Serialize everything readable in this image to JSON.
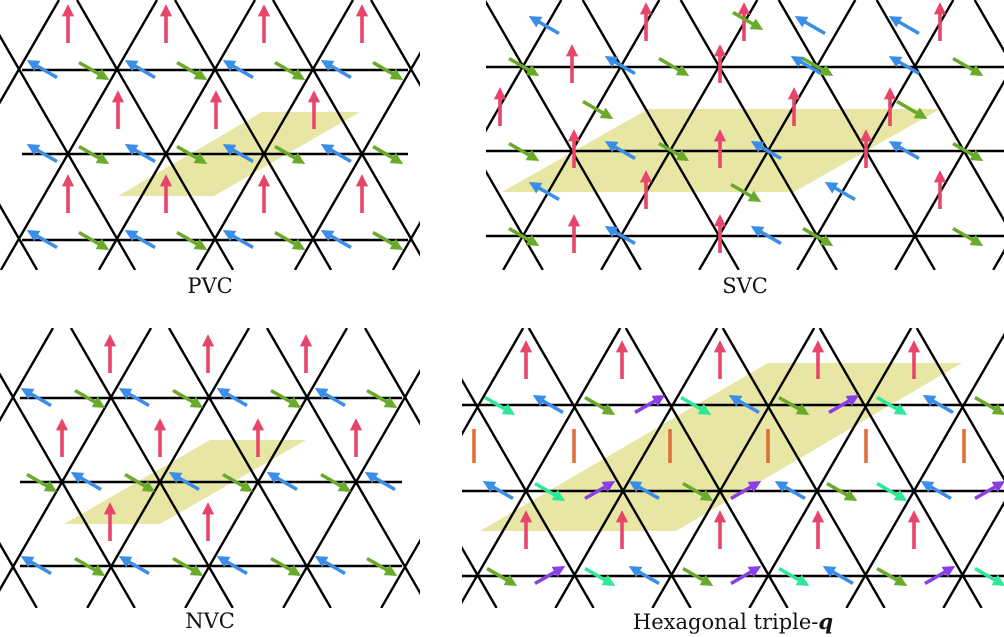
{
  "colors": {
    "lattice": "#000000",
    "cell_fill": "#e6e39a",
    "red": "#e8456b",
    "green": "#6aaa2a",
    "blue": "#3a8ee8",
    "purple": "#8a3ee6",
    "mint": "#2ee89a",
    "orange": "#e0703a"
  },
  "panels": [
    {
      "id": "pvc",
      "caption": "PVC"
    },
    {
      "id": "svc",
      "caption": "SVC"
    },
    {
      "id": "nvc",
      "caption": "NVC"
    },
    {
      "id": "htq",
      "caption_prefix": "Hexagonal triple-",
      "caption_math": "q"
    }
  ]
}
